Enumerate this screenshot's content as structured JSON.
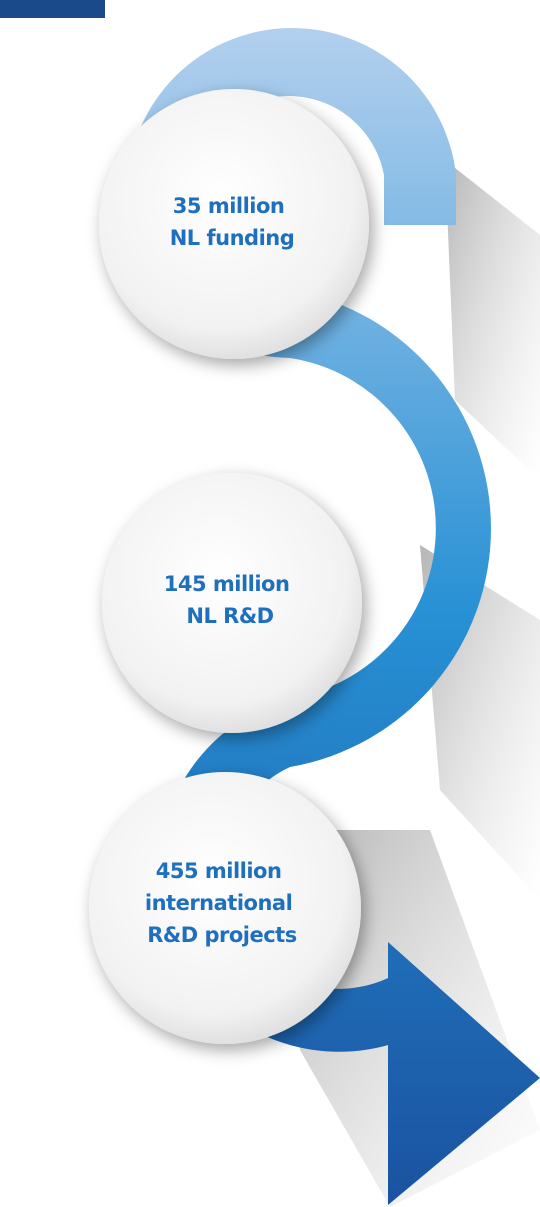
{
  "colors": {
    "band_top": "#b3d0ee",
    "band_mid": "#2790d4",
    "band_bottom": "#1a52a0",
    "corner_block": "#1a4a8a",
    "circle_fill": "#f2f2f2",
    "text": "#1f6fbf"
  },
  "steps": [
    {
      "line1": "35 million",
      "line2": "NL funding",
      "line3": ""
    },
    {
      "line1": "145 million",
      "line2": "NL R&D",
      "line3": ""
    },
    {
      "line1": "455 million",
      "line2": "international",
      "line3": "R&D projects"
    }
  ]
}
